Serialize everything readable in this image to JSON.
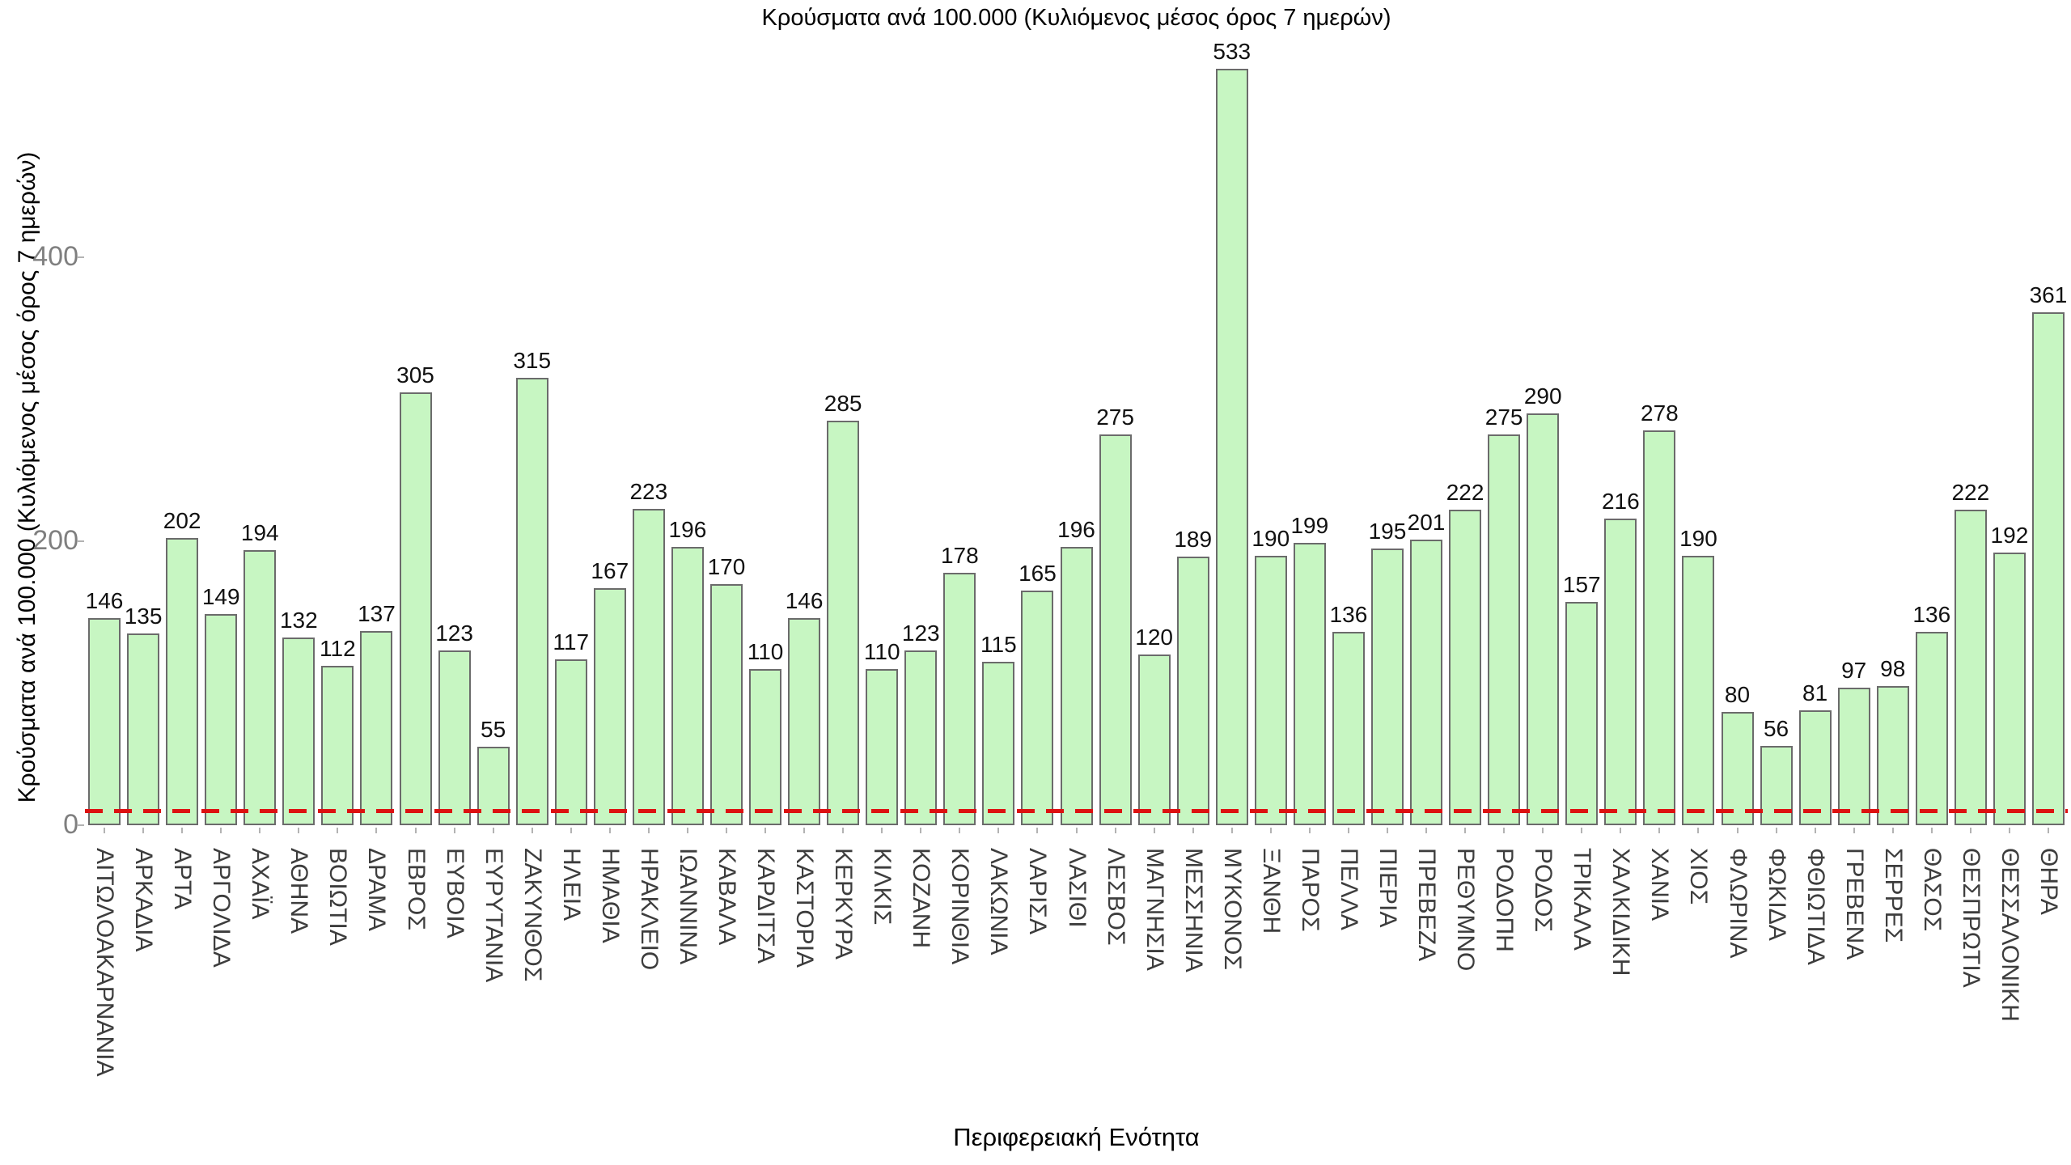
{
  "chart_data": {
    "type": "bar",
    "title": "Κρούσματα ανά 100.000 (Κυλιόμενος μέσος όρος 7 ημερών)",
    "xlabel": "Περιφερειακή Ενότητα",
    "ylabel": "Κρούσματα ανά 100.000 (Κυλιόμενος μέσος όρος 7 ημερών)",
    "categories": [
      "ΑΙΤΩΛΟΑΚΑΡΝΑΝΙΑ",
      "ΑΡΚΑΔΙΑ",
      "ΑΡΤΑ",
      "ΑΡΓΟΛΙΔΑ",
      "ΑΧΑΪΑ",
      "ΑΘΗΝΑ",
      "ΒΟΙΩΤΙΑ",
      "ΔΡΑΜΑ",
      "ΕΒΡΟΣ",
      "ΕΥΒΟΙΑ",
      "ΕΥΡΥΤΑΝΙΑ",
      "ΖΑΚΥΝΘΟΣ",
      "ΗΛΕΙΑ",
      "ΗΜΑΘΙΑ",
      "ΗΡΑΚΛΕΙΟ",
      "ΙΩΑΝΝΙΝΑ",
      "ΚΑΒΑΛΑ",
      "ΚΑΡΔΙΤΣΑ",
      "ΚΑΣΤΟΡΙΑ",
      "ΚΕΡΚΥΡΑ",
      "ΚΙΛΚΙΣ",
      "ΚΟΖΑΝΗ",
      "ΚΟΡΙΝΘΙΑ",
      "ΛΑΚΩΝΙΑ",
      "ΛΑΡΙΣΑ",
      "ΛΑΣΙΘΙ",
      "ΛΕΣΒΟΣ",
      "ΜΑΓΝΗΣΙΑ",
      "ΜΕΣΣΗΝΙΑ",
      "ΜΥΚΟΝΟΣ",
      "ΞΑΝΘΗ",
      "ΠΑΡΟΣ",
      "ΠΕΛΛΑ",
      "ΠΙΕΡΙΑ",
      "ΠΡΕΒΕΖΑ",
      "ΡΕΘΥΜΝΟ",
      "ΡΟΔΟΠΗ",
      "ΡΟΔΟΣ",
      "ΤΡΙΚΑΛΑ",
      "ΧΑΛΚΙΔΙΚΗ",
      "ΧΑΝΙΑ",
      "ΧΙΟΣ",
      "ΦΛΩΡΙΝΑ",
      "ΦΩΚΙΔΑ",
      "ΦΘΙΩΤΙΔΑ",
      "ΓΡΕΒΕΝΑ",
      "ΣΕΡΡΕΣ",
      "ΘΑΣΟΣ",
      "ΘΕΣΠΡΩΤΙΑ",
      "ΘΕΣΣΑΛΟΝΙΚΗ",
      "ΘΗΡΑ"
    ],
    "values": [
      146,
      135,
      202,
      149,
      194,
      132,
      112,
      137,
      305,
      123,
      55,
      315,
      117,
      167,
      223,
      196,
      170,
      110,
      146,
      285,
      110,
      123,
      178,
      115,
      165,
      196,
      275,
      120,
      189,
      533,
      190,
      199,
      136,
      195,
      201,
      222,
      275,
      290,
      157,
      216,
      278,
      190,
      80,
      56,
      81,
      97,
      98,
      136,
      222,
      192,
      361
    ],
    "yticks": [
      0,
      200,
      400
    ],
    "ylim": [
      0,
      558
    ],
    "grid": false,
    "legend": null,
    "bar_fill": "#c7f6c2",
    "bar_border": "#6b6b6b",
    "value_label_color": "#111111",
    "ytick_color": "#7f7f7f",
    "category_color": "#3d3d3d",
    "threshold_line": {
      "value": 10,
      "color": "#dd1111",
      "style": "dashed"
    }
  }
}
